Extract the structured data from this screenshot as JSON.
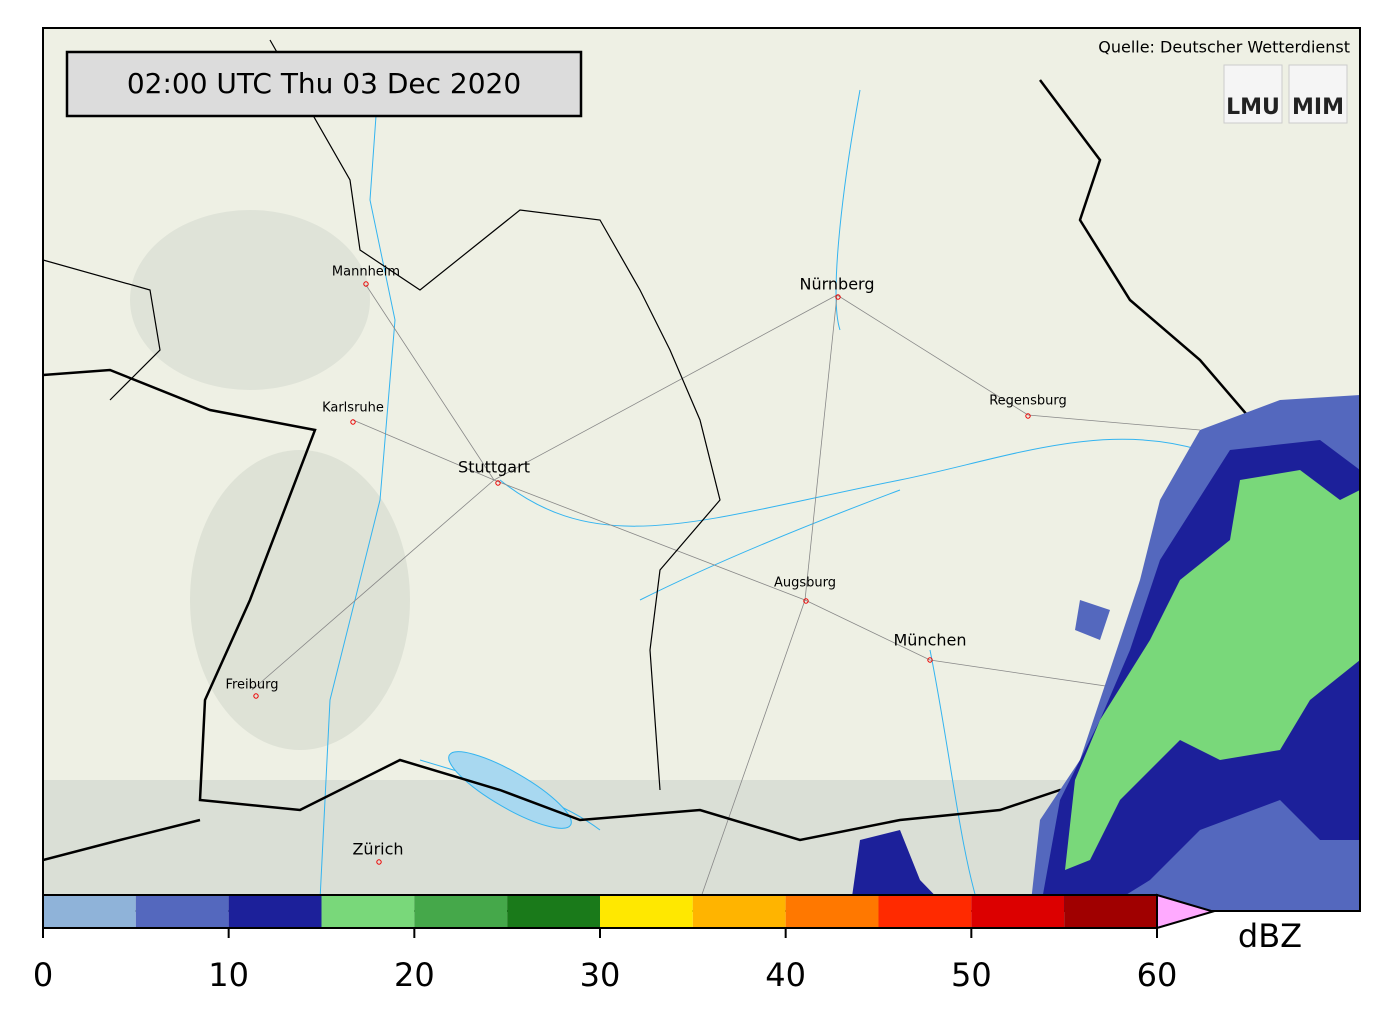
{
  "header": {
    "timestamp": "02:00 UTC  Thu 03 Dec 2020",
    "source": "Quelle: Deutscher Wetterdienst",
    "logos": [
      "LMU",
      "MIM"
    ]
  },
  "cities": [
    "Mannheim",
    "Nürnberg",
    "Regensburg",
    "Karlsruhe",
    "Stuttgart",
    "Augsburg",
    "München",
    "Freiburg",
    "Zürich"
  ],
  "colorbar": {
    "unit": "dBZ",
    "bounds": [
      0,
      5,
      10,
      15,
      20,
      25,
      30,
      35,
      40,
      45,
      50,
      55,
      60
    ],
    "colors": [
      "#8fb3d9",
      "#5468be",
      "#1c209a",
      "#79d87a",
      "#45a84a",
      "#1a7a1a",
      "#ffe800",
      "#ffb400",
      "#ff7800",
      "#ff2a00",
      "#dc0000",
      "#a00000"
    ],
    "extend_color": "#ffaaff",
    "ticks": [
      0,
      10,
      20,
      30,
      40,
      50,
      60
    ]
  }
}
